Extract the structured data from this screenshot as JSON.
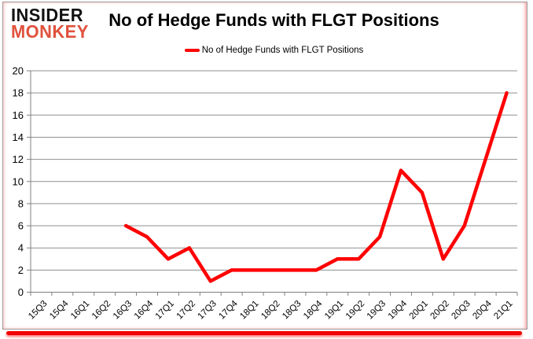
{
  "logo": {
    "line1": "INSIDER",
    "line2": "MONKEY"
  },
  "header": {
    "title": "No of Hedge Funds with FLGT Positions"
  },
  "legend": {
    "label": "No of Hedge Funds with FLGT Positions",
    "line_color": "#ff0000"
  },
  "colors": {
    "series": "#ff0000",
    "grid": "#8f8f8f",
    "axis": "#7f7f7f",
    "text": "#000000",
    "logo_insider": "#111111",
    "logo_monkey": "#e0513c",
    "bottom_bar": "#f00000",
    "card_border": "#9b9b9b"
  },
  "chart_data": {
    "type": "line",
    "title": "No of Hedge Funds with FLGT Positions",
    "categories": [
      "15Q3",
      "15Q4",
      "16Q1",
      "16Q2",
      "16Q3",
      "16Q4",
      "17Q1",
      "17Q2",
      "17Q3",
      "17Q4",
      "18Q1",
      "18Q2",
      "18Q3",
      "18Q4",
      "19Q1",
      "19Q2",
      "19Q3",
      "19Q4",
      "20Q1",
      "20Q2",
      "20Q3",
      "20Q4",
      "21Q1"
    ],
    "series": [
      {
        "name": "No of Hedge Funds with FLGT Positions",
        "color": "#ff0000",
        "values": [
          null,
          null,
          null,
          null,
          6,
          5,
          3,
          4,
          1,
          2,
          2,
          2,
          2,
          2,
          3,
          3,
          5,
          11,
          9,
          3,
          6,
          12,
          18
        ]
      }
    ],
    "ylim": [
      0,
      20
    ],
    "ytick_step": 2,
    "xlabel": "",
    "ylabel": "",
    "grid": "horizontal-only",
    "legend_position": "top-center"
  }
}
